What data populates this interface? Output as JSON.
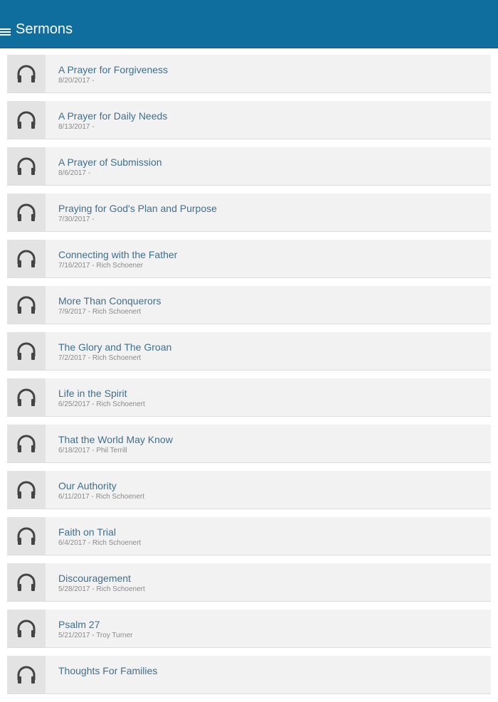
{
  "header": {
    "title": "Sermons",
    "menu_icon": "hamburger-icon",
    "color": "#0f6e9e"
  },
  "sermons": [
    {
      "title": "A Prayer for Forgiveness",
      "meta": "8/20/2017 -"
    },
    {
      "title": "A Prayer for Daily Needs",
      "meta": "8/13/2017 -"
    },
    {
      "title": "A Prayer of Submission",
      "meta": "8/6/2017 -"
    },
    {
      "title": "Praying for God's Plan and Purpose",
      "meta": "7/30/2017 -"
    },
    {
      "title": "Connecting with the Father",
      "meta": "7/16/2017 - Rich Schoener"
    },
    {
      "title": "More Than Conquerors",
      "meta": "7/9/2017 - Rich Schoenert"
    },
    {
      "title": "The Glory and The Groan",
      "meta": "7/2/2017 - Rich Schoenert"
    },
    {
      "title": "Life in the Spirit",
      "meta": "6/25/2017 - Rich Schoenert"
    },
    {
      "title": "That the World May Know",
      "meta": "6/18/2017 - Phil Terrill"
    },
    {
      "title": "Our Authority",
      "meta": "6/11/2017 - Rich Schoenert"
    },
    {
      "title": "Faith on Trial",
      "meta": "6/4/2017 - Rich Schoenert"
    },
    {
      "title": "Discouragement",
      "meta": "5/28/2017 - Rich Schoenert"
    },
    {
      "title": "Psalm 27",
      "meta": "5/21/2017 - Troy Turner"
    },
    {
      "title": "Thoughts For Families",
      "meta": ""
    }
  ]
}
